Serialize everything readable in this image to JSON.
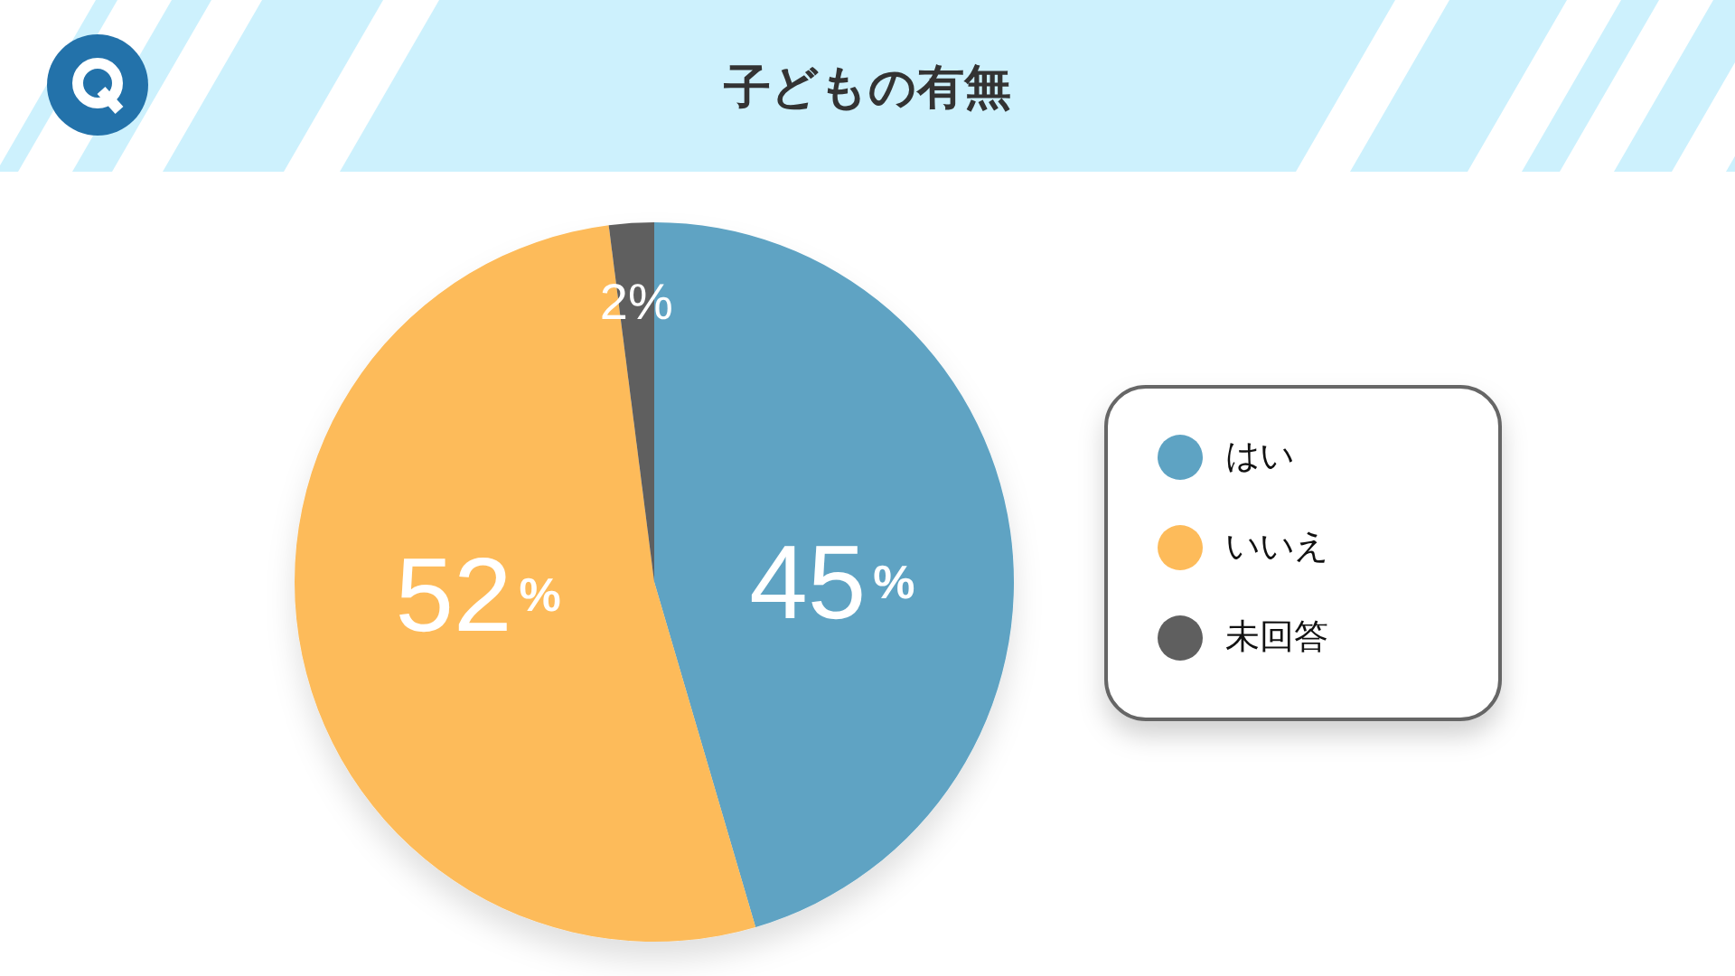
{
  "chart_data": {
    "type": "pie",
    "title": "子どもの有無",
    "categories": [
      "はい",
      "いいえ",
      "未回答"
    ],
    "values": [
      45,
      52,
      2
    ],
    "colors": [
      "#5ea3c3",
      "#fdbb5a",
      "#5f5f5f"
    ],
    "value_labels": [
      "45%",
      "52%",
      "2%"
    ],
    "legend": "right"
  }
}
